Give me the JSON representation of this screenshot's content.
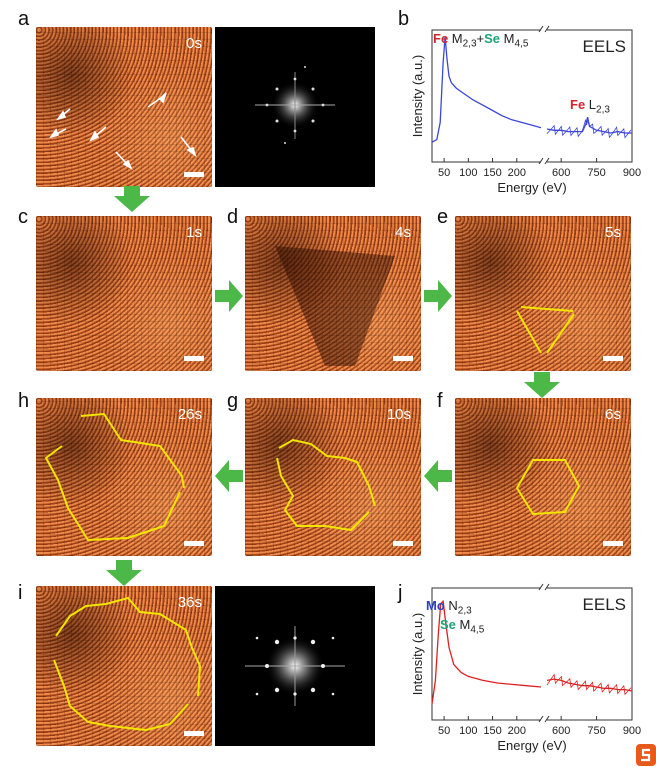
{
  "panels": {
    "a": {
      "letter": "a",
      "time": "0s"
    },
    "b": {
      "letter": "b"
    },
    "c": {
      "letter": "c",
      "time": "1s"
    },
    "d": {
      "letter": "d",
      "time": "4s"
    },
    "e": {
      "letter": "e",
      "time": "5s"
    },
    "f": {
      "letter": "f",
      "time": "6s"
    },
    "g": {
      "letter": "g",
      "time": "10s"
    },
    "h": {
      "letter": "h",
      "time": "26s"
    },
    "i": {
      "letter": "i",
      "time": "36s"
    },
    "j": {
      "letter": "j"
    }
  },
  "colors": {
    "fe_red": "#d4262b",
    "se_green": "#1fa37a",
    "mo_blue": "#2b3fbf",
    "spectrum_blue": "#3b47d6",
    "spectrum_red": "#e02020",
    "arrow_green": "#4cb848",
    "outline_yellow": "#f2e600"
  },
  "chart_data": [
    {
      "type": "line",
      "panel": "b",
      "title": "EELS",
      "xlabel": "Energy (eV)",
      "ylabel": "Intensity (a.u.)",
      "x_ticks_left": [
        "50",
        "100",
        "150",
        "200"
      ],
      "x_ticks_right": [
        "600",
        "750",
        "900"
      ],
      "annotations": [
        {
          "parts": [
            {
              "text": "Fe",
              "color": "fe_red"
            },
            {
              "text": " M"
            },
            {
              "text": "2,3",
              "sub": true
            },
            {
              "text": "+"
            },
            {
              "text": "Se",
              "color": "se_green"
            },
            {
              "text": " M"
            },
            {
              "text": "4,5",
              "sub": true
            }
          ]
        },
        {
          "parts": [
            {
              "text": "Fe",
              "color": "fe_red"
            },
            {
              "text": " L"
            },
            {
              "text": "2,3",
              "sub": true
            }
          ]
        }
      ],
      "series": [
        {
          "segment": "low",
          "x": [
            25,
            35,
            42,
            48,
            52,
            56,
            60,
            65,
            75,
            90,
            110,
            130,
            150,
            170,
            190,
            210,
            230,
            250
          ],
          "y": [
            0.15,
            0.17,
            0.3,
            0.75,
            0.95,
            0.78,
            0.65,
            0.6,
            0.56,
            0.52,
            0.47,
            0.43,
            0.39,
            0.35,
            0.32,
            0.3,
            0.28,
            0.26
          ]
        },
        {
          "segment": "high",
          "x": [
            540,
            570,
            600,
            630,
            660,
            690,
            705,
            712,
            720,
            750,
            780,
            810,
            840,
            870,
            900
          ],
          "y": [
            0.25,
            0.24,
            0.24,
            0.23,
            0.23,
            0.23,
            0.29,
            0.34,
            0.27,
            0.24,
            0.23,
            0.22,
            0.23,
            0.22,
            0.22
          ]
        }
      ]
    },
    {
      "type": "line",
      "panel": "j",
      "title": "EELS",
      "xlabel": "Energy (eV)",
      "ylabel": "Intensity (a.u.)",
      "x_ticks_left": [
        "50",
        "100",
        "150",
        "200"
      ],
      "x_ticks_right": [
        "600",
        "750",
        "900"
      ],
      "annotations": [
        {
          "parts": [
            {
              "text": "Mo",
              "color": "mo_blue"
            },
            {
              "text": " N"
            },
            {
              "text": "2,3",
              "sub": true
            }
          ]
        },
        {
          "parts": [
            {
              "text": "Se",
              "color": "se_green"
            },
            {
              "text": " M"
            },
            {
              "text": "4,5",
              "sub": true
            }
          ]
        }
      ],
      "series": [
        {
          "segment": "low",
          "x": [
            25,
            32,
            38,
            43,
            48,
            54,
            60,
            70,
            85,
            100,
            130,
            160,
            190,
            220,
            250
          ],
          "y": [
            0.12,
            0.3,
            0.65,
            0.88,
            0.9,
            0.72,
            0.55,
            0.42,
            0.36,
            0.33,
            0.3,
            0.28,
            0.27,
            0.26,
            0.25
          ]
        },
        {
          "segment": "high",
          "x": [
            540,
            570,
            600,
            630,
            660,
            690,
            720,
            750,
            780,
            810,
            840,
            870,
            900
          ],
          "y": [
            0.3,
            0.31,
            0.3,
            0.28,
            0.27,
            0.26,
            0.26,
            0.25,
            0.24,
            0.24,
            0.23,
            0.23,
            0.22
          ]
        }
      ]
    }
  ]
}
